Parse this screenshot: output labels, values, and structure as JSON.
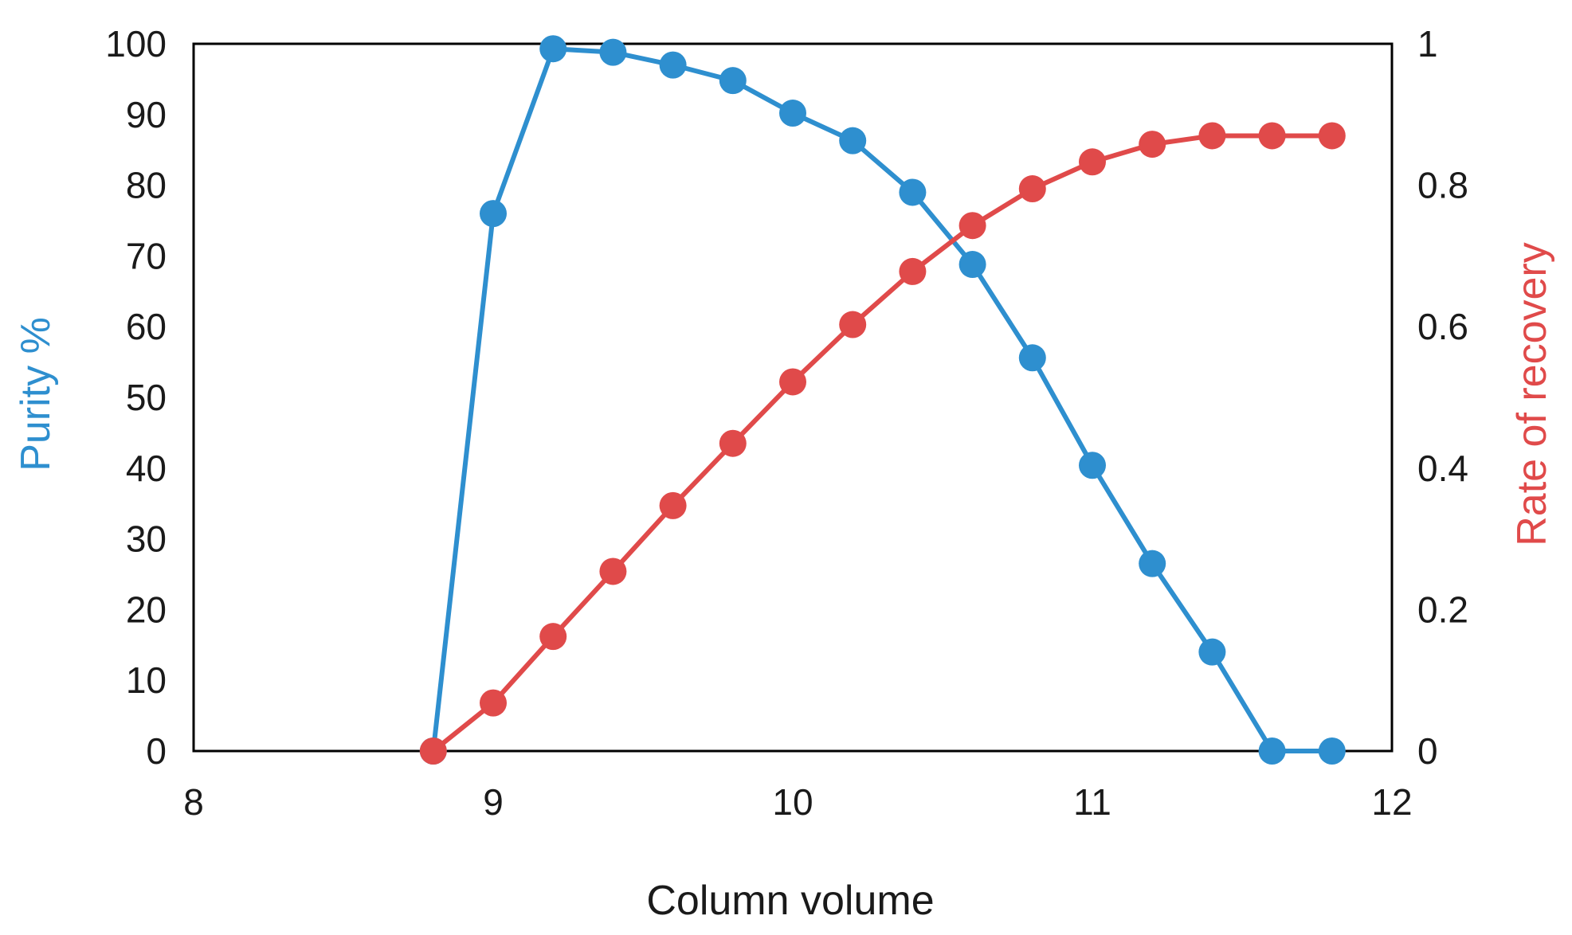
{
  "chart_data": {
    "type": "line",
    "title": "",
    "xlabel": "Column volume",
    "ylabel": "Purity %",
    "y2label": "Rate of recovery",
    "xlim": [
      8,
      12
    ],
    "ylim": [
      0,
      100
    ],
    "y2lim": [
      0,
      1
    ],
    "x_ticks": [
      "8",
      "9",
      "10",
      "11",
      "12"
    ],
    "y_ticks": [
      "0",
      "10",
      "20",
      "30",
      "40",
      "50",
      "60",
      "70",
      "80",
      "90",
      "100"
    ],
    "y2_ticks": [
      "0",
      "0.2",
      "0.4",
      "0.6",
      "0.8",
      "1"
    ],
    "grid": false,
    "series": [
      {
        "axis": "left",
        "color": "#2e8fcf",
        "x": [
          8.8,
          9.0,
          9.2,
          9.4,
          9.6,
          9.8,
          10.0,
          10.2,
          10.4,
          10.6,
          10.8,
          11.0,
          11.2,
          11.4,
          11.6,
          11.8
        ],
        "values": [
          0,
          76,
          99.3,
          98.8,
          97,
          94.8,
          90.2,
          86.3,
          79,
          68.8,
          55.6,
          40.4,
          26.5,
          14,
          0,
          0
        ]
      },
      {
        "axis": "right",
        "color": "#e04a4a",
        "x": [
          8.8,
          9.0,
          9.2,
          9.4,
          9.6,
          9.8,
          10.0,
          10.2,
          10.4,
          10.6,
          10.8,
          11.0,
          11.2,
          11.4,
          11.6,
          11.8
        ],
        "values": [
          0,
          0.068,
          0.162,
          0.254,
          0.347,
          0.435,
          0.522,
          0.603,
          0.678,
          0.743,
          0.795,
          0.833,
          0.858,
          0.87,
          0.87,
          0.87
        ]
      }
    ]
  }
}
